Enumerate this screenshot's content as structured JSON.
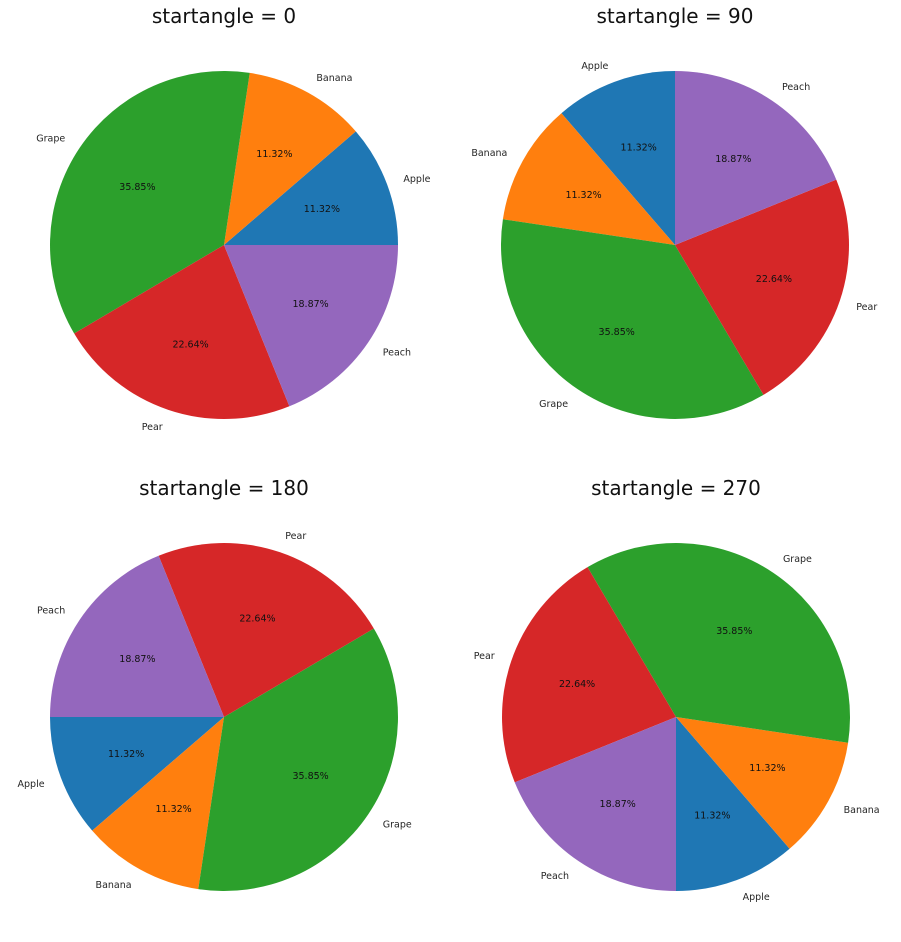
{
  "chart_data": [
    {
      "type": "pie",
      "title": "startangle = 0",
      "start_angle": 0,
      "direction": "counterclockwise",
      "categories": [
        "Apple",
        "Banana",
        "Grape",
        "Pear",
        "Peach"
      ],
      "values": [
        11.32,
        11.32,
        35.85,
        22.64,
        18.87
      ],
      "percent_labels": [
        "11.32%",
        "11.32%",
        "35.85%",
        "22.64%",
        "18.87%"
      ],
      "colors": [
        "#1f77b4",
        "#ff7f0e",
        "#2ca02c",
        "#d62728",
        "#9467bd"
      ]
    },
    {
      "type": "pie",
      "title": "startangle = 90",
      "start_angle": 90,
      "direction": "counterclockwise",
      "categories": [
        "Apple",
        "Banana",
        "Grape",
        "Pear",
        "Peach"
      ],
      "values": [
        11.32,
        11.32,
        35.85,
        22.64,
        18.87
      ],
      "percent_labels": [
        "11.32%",
        "11.32%",
        "35.85%",
        "22.64%",
        "18.87%"
      ],
      "colors": [
        "#1f77b4",
        "#ff7f0e",
        "#2ca02c",
        "#d62728",
        "#9467bd"
      ]
    },
    {
      "type": "pie",
      "title": "startangle = 180",
      "start_angle": 180,
      "direction": "counterclockwise",
      "categories": [
        "Apple",
        "Banana",
        "Grape",
        "Pear",
        "Peach"
      ],
      "values": [
        11.32,
        11.32,
        35.85,
        22.64,
        18.87
      ],
      "percent_labels": [
        "11.32%",
        "11.32%",
        "35.85%",
        "22.64%",
        "18.87%"
      ],
      "colors": [
        "#1f77b4",
        "#ff7f0e",
        "#2ca02c",
        "#d62728",
        "#9467bd"
      ]
    },
    {
      "type": "pie",
      "title": "startangle = 270",
      "start_angle": 270,
      "direction": "counterclockwise",
      "categories": [
        "Apple",
        "Banana",
        "Grape",
        "Pear",
        "Peach"
      ],
      "values": [
        11.32,
        11.32,
        35.85,
        22.64,
        18.87
      ],
      "percent_labels": [
        "11.32%",
        "11.32%",
        "35.85%",
        "22.64%",
        "18.87%"
      ],
      "colors": [
        "#1f77b4",
        "#ff7f0e",
        "#2ca02c",
        "#d62728",
        "#9467bd"
      ]
    }
  ]
}
